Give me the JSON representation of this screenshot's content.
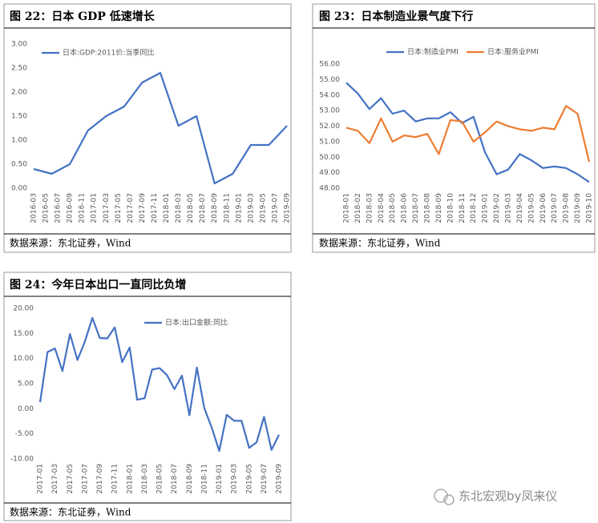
{
  "chart_data": [
    {
      "type": "line",
      "title": "图 22：日本 GDP 低速增长",
      "source": "数据来源：东北证券，Wind",
      "x_tick_labels": [
        "2016-03",
        "2016-05",
        "2016-07",
        "2016-09",
        "2016-11",
        "2017-01",
        "2017-03",
        "2017-05",
        "2017-07",
        "2017-09",
        "2017-11",
        "2018-01",
        "2018-03",
        "2018-05",
        "2018-07",
        "2018-09",
        "2018-11",
        "2019-01",
        "2019-03",
        "2019-05",
        "2019-07",
        "2019-09"
      ],
      "series": [
        {
          "name": "日本:GDP:2011价:当季同比",
          "color": "#4472c4",
          "values": [
            0.4,
            0.3,
            0.5,
            1.2,
            1.5,
            1.7,
            2.2,
            2.4,
            1.3,
            1.5,
            0.1,
            0.3,
            0.9,
            0.9,
            1.3
          ]
        }
      ],
      "ylim": [
        0,
        3
      ],
      "yticks": [
        {
          "value": 0,
          "label": "0.00"
        },
        {
          "value": 0.5,
          "label": "0.50"
        },
        {
          "value": 1,
          "label": "1.00"
        },
        {
          "value": 1.5,
          "label": "1.50"
        },
        {
          "value": 2,
          "label": "2.00"
        },
        {
          "value": 2.5,
          "label": "2.50"
        },
        {
          "value": 3,
          "label": "3.00"
        }
      ],
      "grid": false
    },
    {
      "type": "line",
      "title": "图 23：日本制造业景气度下行",
      "source": "数据来源：东北证券，Wind",
      "categories": [
        "2018-01",
        "2018-02",
        "2018-03",
        "2018-04",
        "2018-05",
        "2018-06",
        "2018-07",
        "2018-08",
        "2018-09",
        "2018-10",
        "2018-11",
        "2018-12",
        "2019-01",
        "2019-02",
        "2019-03",
        "2019-04",
        "2019-05",
        "2019-06",
        "2019-07",
        "2019-08",
        "2019-09",
        "2019-10"
      ],
      "series": [
        {
          "name": "日本:制造业PMI",
          "color": "#4472c4",
          "values": [
            54.8,
            54.1,
            53.1,
            53.8,
            52.8,
            53.0,
            52.3,
            52.5,
            52.5,
            52.9,
            52.2,
            52.6,
            50.3,
            48.9,
            49.2,
            50.2,
            49.8,
            49.3,
            49.4,
            49.3,
            48.9,
            48.4
          ]
        },
        {
          "name": "日本:服务业PMI",
          "color": "#ed7d31",
          "values": [
            51.9,
            51.7,
            50.9,
            52.5,
            51.0,
            51.4,
            51.3,
            51.5,
            50.2,
            52.4,
            52.3,
            51.0,
            51.6,
            52.3,
            52.0,
            51.8,
            51.7,
            51.9,
            51.8,
            53.3,
            52.8,
            49.7
          ]
        }
      ],
      "ylim": [
        48,
        56
      ],
      "yticks": [
        {
          "value": 48,
          "label": "48.00"
        },
        {
          "value": 49,
          "label": "49.00"
        },
        {
          "value": 50,
          "label": "50.00"
        },
        {
          "value": 51,
          "label": "51.00"
        },
        {
          "value": 52,
          "label": "52.00"
        },
        {
          "value": 53,
          "label": "53.00"
        },
        {
          "value": 54,
          "label": "54.00"
        },
        {
          "value": 55,
          "label": "55.00"
        },
        {
          "value": 56,
          "label": "56.00"
        }
      ],
      "grid": false
    },
    {
      "type": "line",
      "title": "图 24：今年日本出口一直同比负增",
      "source": "数据来源：东北证券，Wind",
      "categories": [
        "2017-01",
        null,
        "2017-03",
        null,
        "2017-05",
        null,
        "2017-07",
        null,
        "2017-09",
        null,
        "2017-11",
        null,
        "2018-01",
        null,
        "2018-03",
        null,
        "2018-05",
        null,
        "2018-07",
        null,
        "2018-09",
        null,
        "2018-11",
        null,
        "2019-01",
        null,
        "2019-03",
        null,
        "2019-05",
        null,
        "2019-07",
        null,
        "2019-09"
      ],
      "series": [
        {
          "name": "日本:出口金额:同比",
          "color": "#4472c4",
          "values": [
            1.3,
            11.3,
            12.0,
            7.5,
            14.9,
            9.7,
            13.4,
            18.1,
            14.1,
            14.0,
            16.2,
            9.3,
            12.2,
            1.8,
            2.1,
            7.8,
            8.1,
            6.7,
            3.9,
            6.6,
            -1.3,
            8.2,
            0.1,
            -3.8,
            -8.4,
            -1.2,
            -2.4,
            -2.4,
            -7.8,
            -6.7,
            -1.6,
            -8.2,
            -5.2
          ]
        }
      ],
      "ylim": [
        -10,
        20
      ],
      "yticks": [
        {
          "value": -10,
          "label": "-10.00"
        },
        {
          "value": -5,
          "label": "-5.00"
        },
        {
          "value": 0,
          "label": "0.00"
        },
        {
          "value": 5,
          "label": "5.00"
        },
        {
          "value": 10,
          "label": "10.00"
        },
        {
          "value": 15,
          "label": "15.00"
        },
        {
          "value": 20,
          "label": "20.00"
        }
      ],
      "grid": false
    }
  ],
  "watermark": "东北宏观by凤来仪"
}
